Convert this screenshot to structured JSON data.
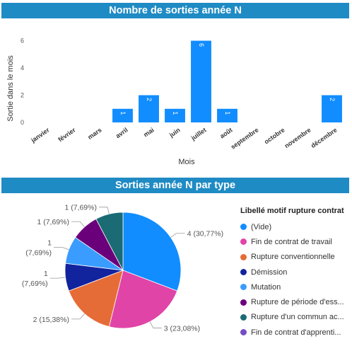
{
  "chart_data": [
    {
      "type": "bar",
      "title": "Nombre de sorties année N",
      "xlabel": "Mois",
      "ylabel": "Sortie dans le mois",
      "categories": [
        "janvier",
        "février",
        "mars",
        "avril",
        "mai",
        "juin",
        "juillet",
        "août",
        "septembre",
        "octobre",
        "novembre",
        "décembre"
      ],
      "values": [
        0,
        0,
        0,
        1,
        2,
        1,
        6,
        1,
        0,
        0,
        0,
        2
      ],
      "yticks": [
        "0",
        "2",
        "4",
        "6"
      ],
      "ylim": [
        0,
        6.6
      ],
      "grid": false,
      "bar_color": "#118dff"
    },
    {
      "type": "pie",
      "title": "Sorties année N par type",
      "legend_title": "Libellé motif rupture contrat",
      "legend_position": "right",
      "slices": [
        {
          "name": "(Vide)",
          "value": 4,
          "label": "4 (30,77%)",
          "color": "#118dff"
        },
        {
          "name": "Fin de contrat de travail",
          "value": 3,
          "label": "3 (23,08%)",
          "color": "#e044a7"
        },
        {
          "name": "Rupture conventionnelle",
          "value": 2,
          "label": "2 (15,38%)",
          "color": "#e66c37"
        },
        {
          "name": "Démission",
          "value": 1,
          "label_lines": [
            "1",
            "(7,69%)"
          ],
          "color": "#12239e"
        },
        {
          "name": "Mutation",
          "value": 1,
          "label_lines": [
            "1",
            "(7,69%)"
          ],
          "color": "#3a9cff"
        },
        {
          "name": "Rupture de période d'ess...",
          "value": 1,
          "label": "1 (7,69%)",
          "color": "#6b007b"
        },
        {
          "name": "Rupture d'un commun ac...",
          "value": 1,
          "label": "1 (7,69%)",
          "color": "#1a6b73"
        },
        {
          "name": "Fin de contrat d'apprenti...",
          "value": 0,
          "color": "#744ec2"
        }
      ]
    }
  ]
}
